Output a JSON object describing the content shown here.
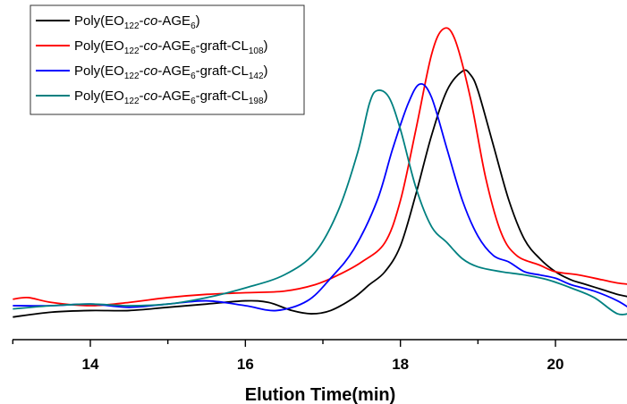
{
  "chart_data": {
    "type": "line",
    "xlabel": "Elution Time(min)",
    "ylabel": "",
    "xlim": [
      13,
      21
    ],
    "ylim": [
      -0.05,
      1.0
    ],
    "xticks": [
      14,
      16,
      18,
      20
    ],
    "xtick_labels": [
      "14",
      "16",
      "18",
      "20"
    ],
    "grid": false,
    "legend_position": "top-left",
    "series": [
      {
        "name": "Poly(EO122-co-AGE6)",
        "legend": {
          "prefix": "Poly(EO",
          "sub1": "122",
          "mid": "-",
          "italic": "co",
          "mid2": "-AGE",
          "sub2": "6",
          "mid3": "",
          "sub3": "",
          "suffix": ")"
        },
        "color": "#000000",
        "points": [
          [
            13.0,
            0.02
          ],
          [
            13.5,
            0.035
          ],
          [
            14.0,
            0.04
          ],
          [
            14.5,
            0.04
          ],
          [
            15.0,
            0.05
          ],
          [
            15.5,
            0.06
          ],
          [
            16.0,
            0.07
          ],
          [
            16.3,
            0.065
          ],
          [
            16.6,
            0.04
          ],
          [
            16.85,
            0.03
          ],
          [
            17.1,
            0.04
          ],
          [
            17.4,
            0.08
          ],
          [
            17.6,
            0.12
          ],
          [
            17.8,
            0.16
          ],
          [
            18.0,
            0.24
          ],
          [
            18.2,
            0.4
          ],
          [
            18.4,
            0.58
          ],
          [
            18.6,
            0.72
          ],
          [
            18.8,
            0.78
          ],
          [
            18.9,
            0.77
          ],
          [
            19.0,
            0.72
          ],
          [
            19.2,
            0.55
          ],
          [
            19.4,
            0.38
          ],
          [
            19.6,
            0.26
          ],
          [
            19.8,
            0.2
          ],
          [
            20.0,
            0.16
          ],
          [
            20.2,
            0.135
          ],
          [
            20.4,
            0.12
          ],
          [
            20.6,
            0.105
          ],
          [
            20.8,
            0.09
          ],
          [
            21.0,
            0.08
          ]
        ]
      },
      {
        "name": "Poly(EO122-co-AGE6-graft-CL108)",
        "legend": {
          "prefix": "Poly(EO",
          "sub1": "122",
          "mid": "-",
          "italic": "co",
          "mid2": "-AGE",
          "sub2": "6",
          "mid3": "-graft-CL",
          "sub3": "108",
          "suffix": ")"
        },
        "color": "#ff0000",
        "points": [
          [
            13.0,
            0.075
          ],
          [
            13.2,
            0.08
          ],
          [
            13.5,
            0.065
          ],
          [
            14.0,
            0.055
          ],
          [
            14.5,
            0.065
          ],
          [
            15.0,
            0.08
          ],
          [
            15.5,
            0.09
          ],
          [
            16.0,
            0.095
          ],
          [
            16.5,
            0.1
          ],
          [
            16.9,
            0.12
          ],
          [
            17.2,
            0.15
          ],
          [
            17.5,
            0.19
          ],
          [
            17.8,
            0.25
          ],
          [
            18.0,
            0.38
          ],
          [
            18.2,
            0.6
          ],
          [
            18.4,
            0.83
          ],
          [
            18.55,
            0.91
          ],
          [
            18.7,
            0.88
          ],
          [
            18.9,
            0.7
          ],
          [
            19.1,
            0.45
          ],
          [
            19.3,
            0.28
          ],
          [
            19.5,
            0.21
          ],
          [
            19.8,
            0.18
          ],
          [
            20.0,
            0.16
          ],
          [
            20.3,
            0.15
          ],
          [
            20.6,
            0.135
          ],
          [
            20.8,
            0.125
          ],
          [
            21.0,
            0.12
          ]
        ]
      },
      {
        "name": "Poly(EO122-co-AGE6-graft-CL142)",
        "legend": {
          "prefix": "Poly(EO",
          "sub1": "122",
          "mid": "-",
          "italic": "co",
          "mid2": "-AGE",
          "sub2": "6",
          "mid3": "-graft-CL",
          "sub3": "142",
          "suffix": ")"
        },
        "color": "#0000ff",
        "points": [
          [
            13.0,
            0.055
          ],
          [
            13.5,
            0.055
          ],
          [
            14.0,
            0.06
          ],
          [
            14.5,
            0.05
          ],
          [
            15.0,
            0.06
          ],
          [
            15.5,
            0.07
          ],
          [
            16.0,
            0.055
          ],
          [
            16.4,
            0.04
          ],
          [
            16.8,
            0.07
          ],
          [
            17.1,
            0.14
          ],
          [
            17.4,
            0.23
          ],
          [
            17.7,
            0.38
          ],
          [
            17.9,
            0.54
          ],
          [
            18.1,
            0.68
          ],
          [
            18.25,
            0.74
          ],
          [
            18.4,
            0.7
          ],
          [
            18.6,
            0.54
          ],
          [
            18.8,
            0.38
          ],
          [
            19.0,
            0.27
          ],
          [
            19.2,
            0.21
          ],
          [
            19.4,
            0.19
          ],
          [
            19.6,
            0.16
          ],
          [
            19.8,
            0.15
          ],
          [
            20.0,
            0.14
          ],
          [
            20.2,
            0.12
          ],
          [
            20.5,
            0.1
          ],
          [
            20.8,
            0.07
          ],
          [
            21.0,
            0.04
          ]
        ]
      },
      {
        "name": "Poly(EO122-co-AGE6-graft-CL198)",
        "legend": {
          "prefix": "Poly(EO",
          "sub1": "122",
          "mid": "-",
          "italic": "co",
          "mid2": "-AGE",
          "sub2": "6",
          "mid3": "-graft-CL",
          "sub3": "198",
          "suffix": ")"
        },
        "color": "#008080",
        "points": [
          [
            13.0,
            0.045
          ],
          [
            13.5,
            0.055
          ],
          [
            14.0,
            0.06
          ],
          [
            14.5,
            0.055
          ],
          [
            15.0,
            0.06
          ],
          [
            15.5,
            0.08
          ],
          [
            16.0,
            0.11
          ],
          [
            16.5,
            0.15
          ],
          [
            16.9,
            0.22
          ],
          [
            17.2,
            0.35
          ],
          [
            17.45,
            0.53
          ],
          [
            17.6,
            0.68
          ],
          [
            17.7,
            0.72
          ],
          [
            17.85,
            0.7
          ],
          [
            18.0,
            0.6
          ],
          [
            18.2,
            0.42
          ],
          [
            18.4,
            0.3
          ],
          [
            18.6,
            0.25
          ],
          [
            18.8,
            0.2
          ],
          [
            19.0,
            0.175
          ],
          [
            19.3,
            0.16
          ],
          [
            19.6,
            0.15
          ],
          [
            19.9,
            0.135
          ],
          [
            20.2,
            0.11
          ],
          [
            20.5,
            0.08
          ],
          [
            20.8,
            0.03
          ],
          [
            21.0,
            0.035
          ]
        ]
      }
    ]
  }
}
